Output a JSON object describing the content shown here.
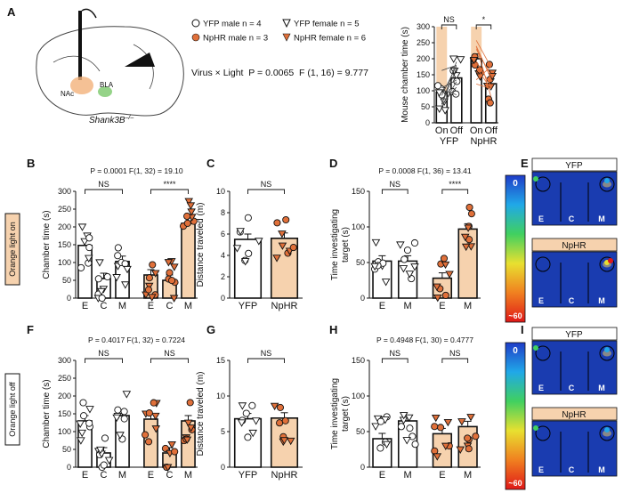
{
  "colors": {
    "orange": "#e0703a",
    "lightOrange": "#f6d2ae",
    "heatBg": "#1a3cb0",
    "black": "#111111"
  },
  "panel_labels": [
    "A",
    "B",
    "C",
    "D",
    "E",
    "F",
    "G",
    "H",
    "I"
  ],
  "panelA": {
    "legend": [
      "YFP male n = 4",
      "NpHR male n = 3",
      "YFP female n = 5",
      "NpHR female n = 6"
    ],
    "stat": "Virus × Light  P = 0.0065  F (1, 16) = 9.777",
    "brain_labels": [
      "NAc",
      "BLA"
    ],
    "genotype": "Shank3B",
    "genotype_sup": "–/–"
  },
  "side_labels": [
    "Orange light on",
    "Orange light off"
  ],
  "heatmap": {
    "scale_top": "0",
    "scale_bottom": "~60",
    "row1": [
      "YFP",
      "NpHR"
    ],
    "row2": [
      "YFP",
      "NpHR"
    ],
    "zones": [
      "E",
      "C",
      "M"
    ]
  },
  "chart_data": [
    {
      "id": "A",
      "type": "bar",
      "ylabel": "Mouse chamber time (s)",
      "ylim": [
        0,
        300
      ],
      "yticks": [
        0,
        50,
        100,
        150,
        200,
        250,
        300
      ],
      "categories": [
        "On",
        "Off",
        "On",
        "Off"
      ],
      "groups": [
        "YFP",
        "NpHR"
      ],
      "values": [
        95,
        140,
        200,
        122
      ],
      "sig": [
        {
          "label": "NS",
          "from": 0,
          "to": 1
        },
        {
          "label": "*",
          "from": 2,
          "to": 3
        }
      ]
    },
    {
      "id": "B",
      "type": "bar",
      "stat": "P = 0.0001  F(1, 32) = 19.10",
      "ylabel": "Chamber time (s)",
      "ylim": [
        0,
        300
      ],
      "yticks": [
        0,
        50,
        100,
        150,
        200,
        250,
        300
      ],
      "categories": [
        "E",
        "C",
        "M",
        "E",
        "C",
        "M"
      ],
      "values": [
        148,
        55,
        103,
        65,
        50,
        210
      ],
      "sig": [
        {
          "label": "NS",
          "from": 0,
          "to": 2
        },
        {
          "label": "****",
          "from": 3,
          "to": 5
        }
      ]
    },
    {
      "id": "C",
      "type": "bar",
      "ylabel": "Distance traveled (m)",
      "ylim": [
        0,
        10
      ],
      "yticks": [
        0,
        2,
        4,
        6,
        8,
        10
      ],
      "categories": [
        "YFP",
        "NpHR"
      ],
      "values": [
        5.5,
        5.6
      ],
      "sig": [
        {
          "label": "NS",
          "from": 0,
          "to": 1
        }
      ]
    },
    {
      "id": "D",
      "type": "bar",
      "stat": "P = 0.0008  F(1, 36) = 13.41",
      "ylabel": "Time investigating target (s)",
      "ylim": [
        0,
        150
      ],
      "yticks": [
        0,
        50,
        100,
        150
      ],
      "categories": [
        "E",
        "M",
        "E",
        "M"
      ],
      "values": [
        52,
        52,
        28,
        97
      ],
      "sig": [
        {
          "label": "NS",
          "from": 0,
          "to": 1
        },
        {
          "label": "****",
          "from": 2,
          "to": 3
        }
      ]
    },
    {
      "id": "F",
      "type": "bar",
      "stat": "P = 0.4017  F(1, 32) = 0.7224",
      "ylabel": "Chamber time (s)",
      "ylim": [
        0,
        300
      ],
      "yticks": [
        0,
        50,
        100,
        150,
        200,
        250,
        300
      ],
      "categories": [
        "E",
        "C",
        "M",
        "E",
        "C",
        "M"
      ],
      "values": [
        130,
        40,
        145,
        135,
        40,
        130
      ],
      "sig": [
        {
          "label": "NS",
          "from": 0,
          "to": 2
        },
        {
          "label": "NS",
          "from": 3,
          "to": 5
        }
      ]
    },
    {
      "id": "G",
      "type": "bar",
      "ylabel": "Distance traveled (m)",
      "ylim": [
        0,
        15
      ],
      "yticks": [
        0,
        5,
        10,
        15
      ],
      "categories": [
        "YFP",
        "NpHR"
      ],
      "values": [
        6.8,
        6.9
      ],
      "sig": [
        {
          "label": "NS",
          "from": 0,
          "to": 1
        }
      ]
    },
    {
      "id": "H",
      "type": "bar",
      "stat": "P = 0.4948  F(1, 30) = 0.4777",
      "ylabel": "Time investigating target (s)",
      "ylim": [
        0,
        150
      ],
      "yticks": [
        0,
        50,
        100,
        150
      ],
      "categories": [
        "E",
        "M",
        "E",
        "M"
      ],
      "values": [
        40,
        65,
        47,
        57
      ],
      "sig": [
        {
          "label": "NS",
          "from": 0,
          "to": 1
        },
        {
          "label": "NS",
          "from": 2,
          "to": 3
        }
      ]
    }
  ]
}
